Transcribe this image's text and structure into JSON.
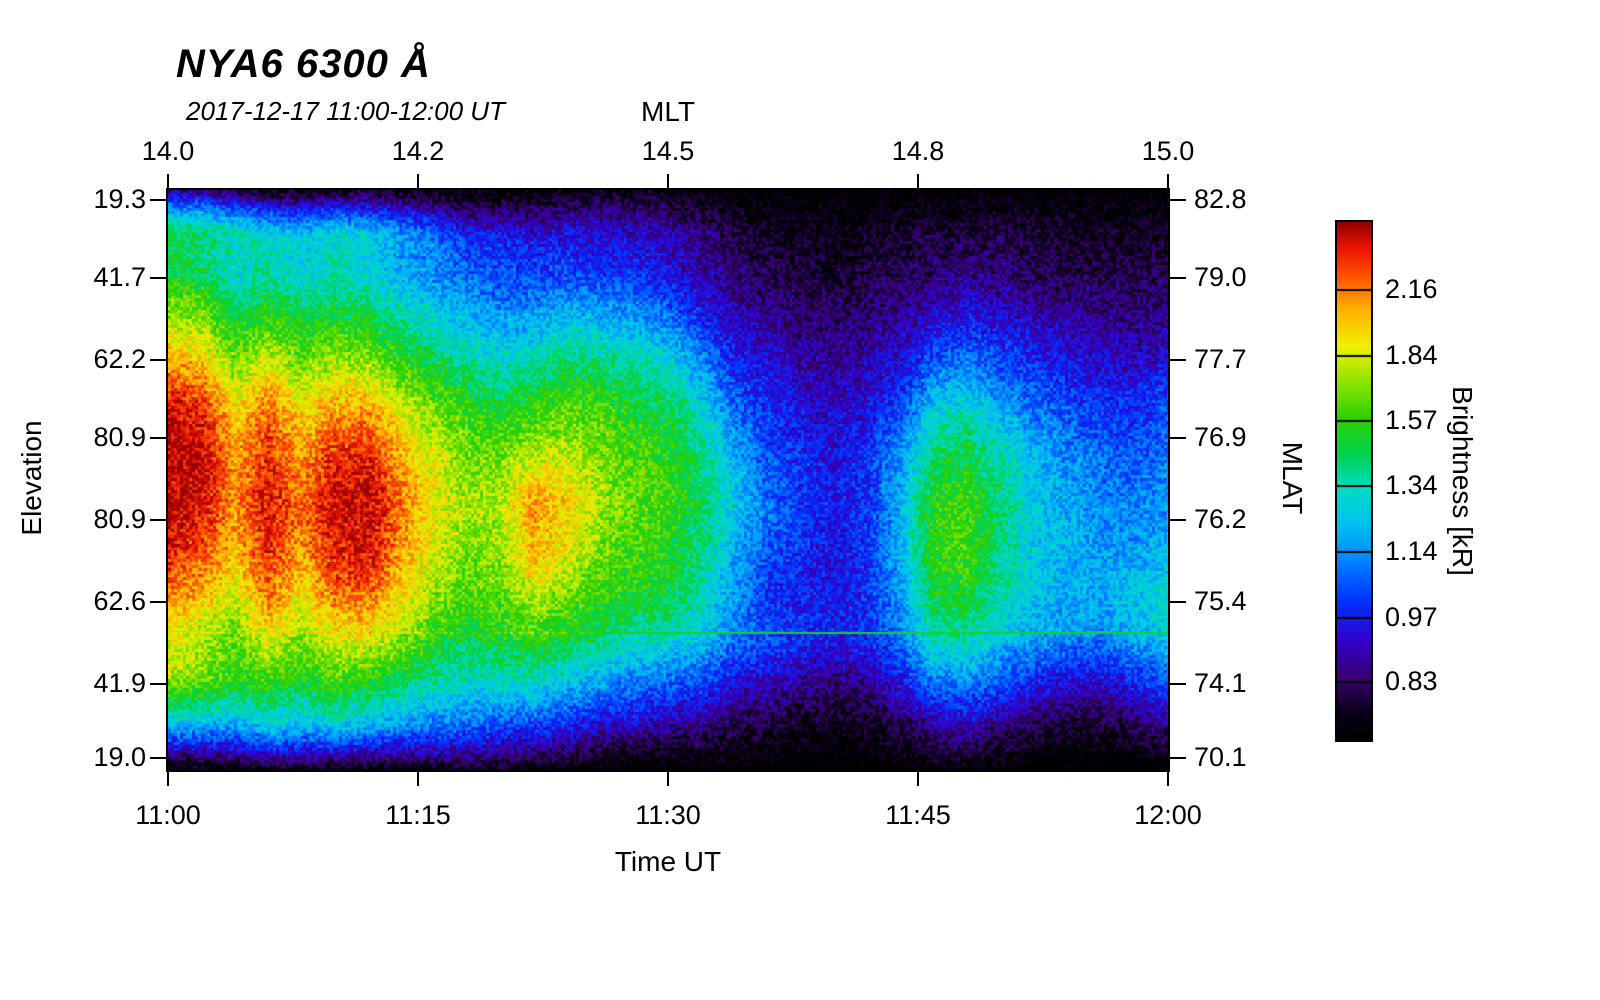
{
  "title": "NYA6 6300 Å",
  "subtitle": "2017-12-17 11:00-12:00 UT",
  "chart_data": {
    "type": "heatmap",
    "title": "NYA6 6300 Å",
    "subtitle": "2017-12-17 11:00-12:00 UT",
    "axes": {
      "top": {
        "label": "MLT",
        "ticks": [
          "14.0",
          "14.2",
          "14.5",
          "14.8",
          "15.0"
        ],
        "fractions": [
          0,
          0.25,
          0.5,
          0.75,
          1
        ]
      },
      "bottom": {
        "label": "Time UT",
        "ticks": [
          "11:00",
          "11:15",
          "11:30",
          "11:45",
          "12:00"
        ],
        "fractions": [
          0,
          0.25,
          0.5,
          0.75,
          1
        ]
      },
      "left": {
        "label": "Elevation",
        "ticks": [
          "19.3",
          "41.7",
          "62.2",
          "80.9",
          "80.9",
          "62.6",
          "41.9",
          "19.0"
        ],
        "fractions": [
          0.017,
          0.152,
          0.293,
          0.428,
          0.569,
          0.71,
          0.852,
          0.979
        ]
      },
      "right": {
        "label": "MLAT",
        "ticks": [
          "82.8",
          "79.0",
          "77.7",
          "76.9",
          "76.2",
          "75.4",
          "74.1",
          "70.1"
        ],
        "fractions": [
          0.017,
          0.152,
          0.293,
          0.428,
          0.569,
          0.71,
          0.852,
          0.979
        ]
      }
    },
    "colorbar": {
      "label": "Brightness [kR]",
      "ticks": [
        2.16,
        1.84,
        1.57,
        1.34,
        1.14,
        0.97,
        0.83
      ],
      "vmin": 0.72,
      "vmax": 2.55,
      "scale": "log"
    },
    "colormap": [
      [
        0.0,
        "#000000"
      ],
      [
        0.05,
        "#0a0018"
      ],
      [
        0.12,
        "#38006e"
      ],
      [
        0.19,
        "#3300cc"
      ],
      [
        0.27,
        "#0033ff"
      ],
      [
        0.35,
        "#0088ff"
      ],
      [
        0.42,
        "#00c4f0"
      ],
      [
        0.49,
        "#00dcc0"
      ],
      [
        0.55,
        "#00d250"
      ],
      [
        0.62,
        "#2cd000"
      ],
      [
        0.69,
        "#8ce400"
      ],
      [
        0.76,
        "#f0f000"
      ],
      [
        0.83,
        "#ffb400"
      ],
      [
        0.89,
        "#ff5a00"
      ],
      [
        0.95,
        "#ec1400"
      ],
      [
        1.0,
        "#960000"
      ]
    ],
    "artifact_line_fraction": 0.763,
    "grid": {
      "x_minutes": [
        0,
        2,
        4,
        6,
        8,
        10,
        12,
        14,
        16,
        18,
        20,
        22,
        24,
        26,
        28,
        30,
        32,
        34,
        36,
        38,
        40,
        42,
        44,
        46,
        48,
        50,
        52,
        54,
        56,
        58,
        60
      ],
      "rows_order": "top-to-bottom",
      "values_by_column": [
        [
          0.78,
          1.45,
          1.5,
          1.75,
          2.1,
          2.45,
          2.52,
          2.5,
          2.45,
          2.2,
          1.9,
          1.8,
          1.3,
          0.75
        ],
        [
          0.78,
          1.4,
          1.45,
          1.7,
          2.0,
          2.35,
          2.5,
          2.45,
          2.3,
          2.1,
          1.8,
          1.7,
          1.25,
          0.75
        ],
        [
          0.76,
          1.35,
          1.3,
          1.5,
          1.7,
          1.95,
          2.05,
          2.1,
          2.05,
          1.85,
          1.65,
          1.55,
          1.2,
          0.74
        ],
        [
          0.76,
          1.3,
          1.4,
          1.6,
          1.9,
          2.2,
          2.35,
          2.4,
          2.35,
          2.2,
          1.9,
          1.6,
          1.25,
          0.74
        ],
        [
          0.76,
          1.25,
          1.3,
          1.5,
          1.7,
          1.95,
          2.1,
          2.2,
          2.1,
          1.9,
          1.7,
          1.5,
          1.2,
          0.74
        ],
        [
          0.76,
          1.3,
          1.35,
          1.55,
          1.8,
          2.1,
          2.35,
          2.45,
          2.4,
          2.2,
          1.9,
          1.6,
          1.25,
          0.74
        ],
        [
          0.76,
          1.25,
          1.3,
          1.5,
          1.75,
          2.1,
          2.4,
          2.52,
          2.45,
          2.25,
          1.9,
          1.55,
          1.2,
          0.74
        ],
        [
          0.75,
          1.15,
          1.2,
          1.4,
          1.6,
          1.85,
          2.05,
          2.15,
          2.1,
          1.95,
          1.75,
          1.45,
          1.15,
          0.73
        ],
        [
          0.75,
          1.1,
          1.15,
          1.3,
          1.5,
          1.7,
          1.85,
          1.9,
          1.85,
          1.75,
          1.55,
          1.35,
          1.1,
          0.73
        ],
        [
          0.74,
          1.0,
          1.1,
          1.25,
          1.4,
          1.6,
          1.7,
          1.75,
          1.7,
          1.6,
          1.45,
          1.3,
          1.05,
          0.72
        ],
        [
          0.74,
          1.0,
          1.05,
          1.2,
          1.35,
          1.55,
          1.7,
          1.8,
          1.75,
          1.65,
          1.5,
          1.3,
          1.0,
          0.72
        ],
        [
          0.74,
          0.95,
          1.05,
          1.2,
          1.4,
          1.6,
          1.85,
          2.1,
          2.05,
          1.8,
          1.55,
          1.3,
          1.0,
          0.72
        ],
        [
          0.74,
          0.95,
          1.05,
          1.25,
          1.45,
          1.65,
          1.8,
          1.95,
          1.9,
          1.7,
          1.5,
          1.25,
          1.0,
          0.72
        ],
        [
          0.73,
          0.92,
          1.0,
          1.2,
          1.4,
          1.6,
          1.7,
          1.75,
          1.7,
          1.6,
          1.45,
          1.2,
          0.95,
          0.72
        ],
        [
          0.73,
          0.9,
          1.0,
          1.15,
          1.35,
          1.5,
          1.6,
          1.65,
          1.6,
          1.55,
          1.4,
          1.15,
          0.95,
          0.72
        ],
        [
          0.73,
          0.88,
          0.95,
          1.1,
          1.3,
          1.45,
          1.55,
          1.6,
          1.55,
          1.5,
          1.35,
          1.1,
          0.9,
          0.71
        ],
        [
          0.72,
          0.85,
          0.9,
          1.0,
          1.15,
          1.3,
          1.4,
          1.45,
          1.4,
          1.35,
          1.25,
          1.05,
          0.85,
          0.71
        ],
        [
          0.72,
          0.8,
          0.85,
          0.92,
          1.0,
          1.1,
          1.2,
          1.25,
          1.2,
          1.15,
          1.1,
          0.95,
          0.8,
          0.71
        ],
        [
          0.71,
          0.78,
          0.82,
          0.88,
          0.95,
          1.0,
          1.05,
          1.1,
          1.05,
          1.0,
          1.05,
          0.9,
          0.78,
          0.7
        ],
        [
          0.71,
          0.76,
          0.8,
          0.85,
          0.9,
          0.95,
          1.0,
          1.0,
          1.0,
          0.98,
          1.0,
          0.88,
          0.76,
          0.7
        ],
        [
          0.71,
          0.75,
          0.78,
          0.83,
          0.88,
          0.92,
          0.95,
          0.97,
          0.95,
          0.95,
          0.98,
          0.85,
          0.75,
          0.7
        ],
        [
          0.71,
          0.76,
          0.8,
          0.85,
          0.9,
          0.95,
          1.0,
          1.0,
          1.0,
          1.0,
          1.0,
          0.88,
          0.76,
          0.7
        ],
        [
          0.71,
          0.78,
          0.82,
          0.88,
          0.95,
          1.05,
          1.15,
          1.2,
          1.2,
          1.15,
          1.1,
          0.95,
          0.8,
          0.7
        ],
        [
          0.72,
          0.8,
          0.85,
          0.95,
          1.1,
          1.3,
          1.45,
          1.55,
          1.55,
          1.5,
          1.35,
          1.1,
          0.85,
          0.71
        ],
        [
          0.72,
          0.8,
          0.88,
          0.98,
          1.15,
          1.35,
          1.5,
          1.6,
          1.6,
          1.5,
          1.35,
          1.1,
          0.9,
          0.71
        ],
        [
          0.72,
          0.8,
          0.85,
          0.95,
          1.05,
          1.2,
          1.35,
          1.4,
          1.4,
          1.35,
          1.25,
          1.05,
          0.85,
          0.71
        ],
        [
          0.71,
          0.78,
          0.82,
          0.9,
          1.0,
          1.1,
          1.2,
          1.25,
          1.25,
          1.25,
          1.2,
          1.0,
          0.82,
          0.7
        ],
        [
          0.71,
          0.77,
          0.8,
          0.88,
          0.95,
          1.05,
          1.12,
          1.18,
          1.2,
          1.2,
          1.15,
          0.98,
          0.8,
          0.7
        ],
        [
          0.71,
          0.76,
          0.8,
          0.86,
          0.93,
          1.0,
          1.08,
          1.12,
          1.15,
          1.2,
          1.15,
          0.95,
          0.8,
          0.7
        ],
        [
          0.71,
          0.76,
          0.8,
          0.85,
          0.92,
          1.0,
          1.05,
          1.1,
          1.15,
          1.25,
          1.2,
          1.0,
          0.82,
          0.7
        ],
        [
          0.71,
          0.77,
          0.82,
          0.88,
          0.95,
          1.05,
          1.1,
          1.15,
          1.2,
          1.3,
          1.25,
          1.05,
          0.85,
          0.7
        ]
      ]
    }
  }
}
